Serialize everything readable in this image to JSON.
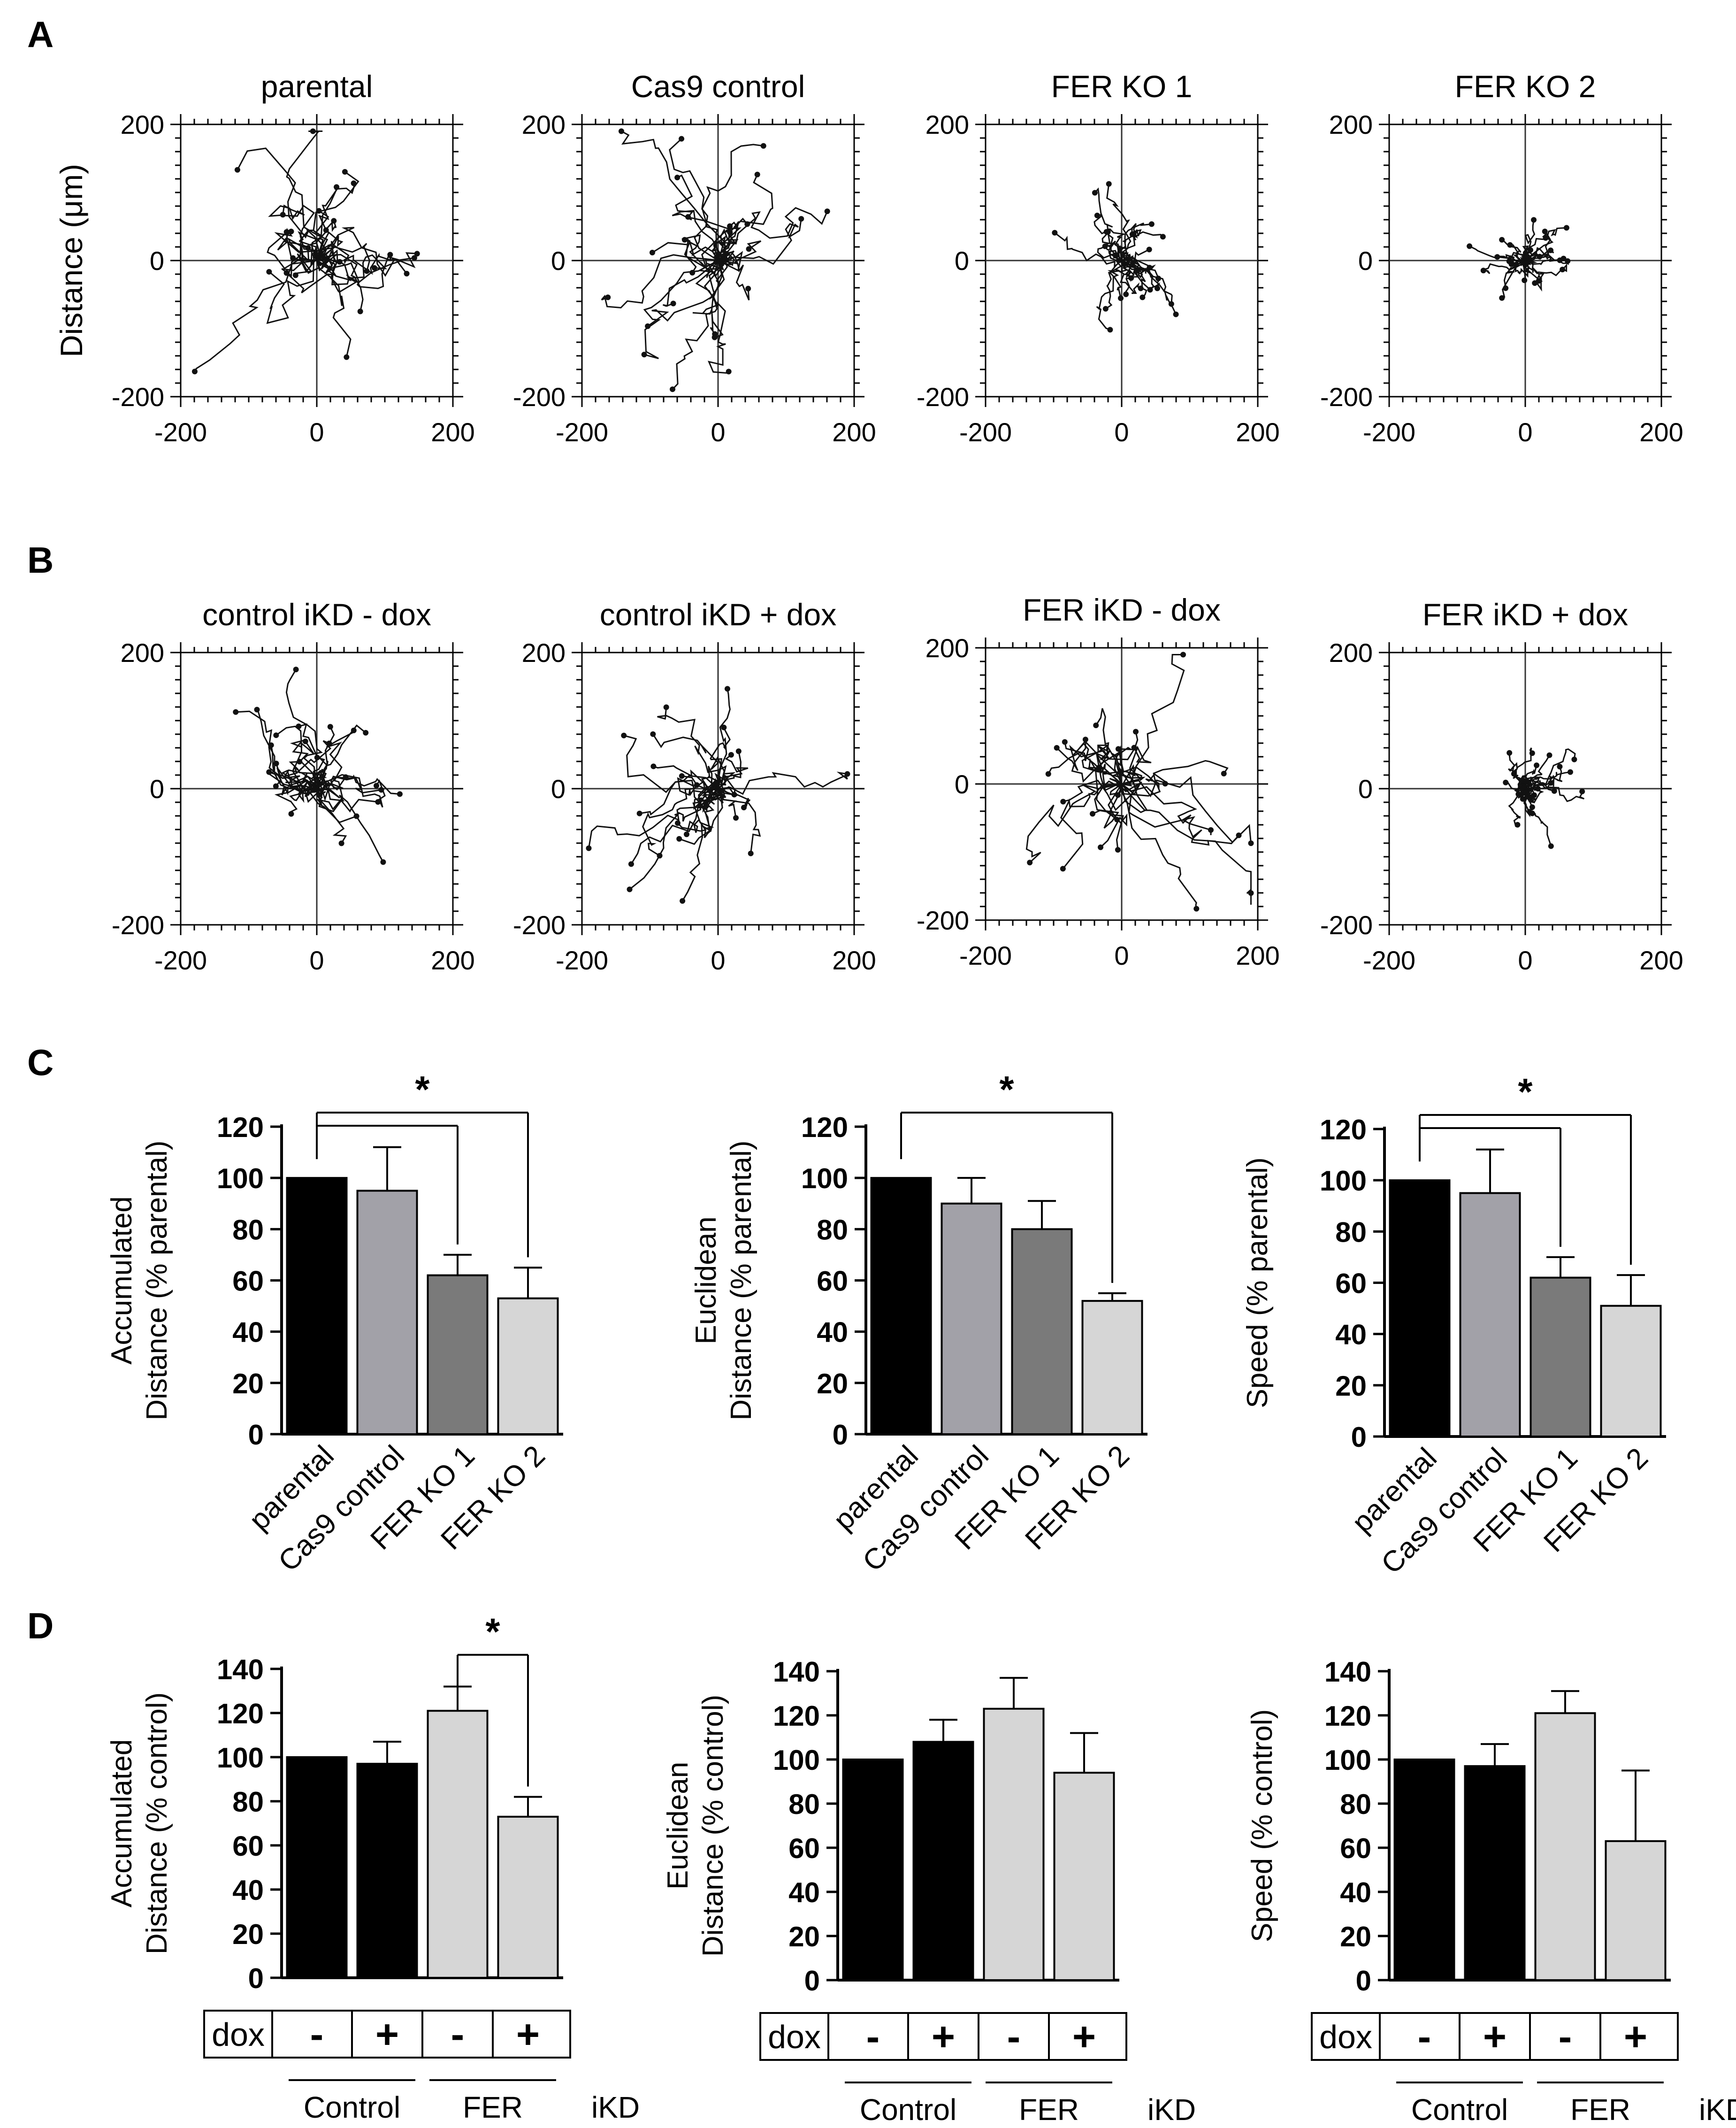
{
  "chart_data": [
    {
      "panel": "A",
      "type": "scatter",
      "title": "parental",
      "ylabel": "Distance (μm)",
      "xlim": [
        -200,
        200
      ],
      "ylim": [
        -200,
        200
      ],
      "x_ticks": [
        "-200",
        "0",
        "200"
      ],
      "y_ticks": [
        "200",
        "0",
        "-200"
      ],
      "spread": 80
    },
    {
      "panel": "A",
      "type": "scatter",
      "title": "Cas9 control",
      "ylabel": "",
      "xlim": [
        -200,
        200
      ],
      "ylim": [
        -200,
        200
      ],
      "x_ticks": [
        "-200",
        "0",
        "200"
      ],
      "y_ticks": [
        "200",
        "0",
        "-200"
      ],
      "spread": 80
    },
    {
      "panel": "A",
      "type": "scatter",
      "title": "FER KO 1",
      "ylabel": "",
      "xlim": [
        -200,
        200
      ],
      "ylim": [
        -200,
        200
      ],
      "x_ticks": [
        "-200",
        "0",
        "200"
      ],
      "y_ticks": [
        "200",
        "0",
        "-200"
      ],
      "spread": 40
    },
    {
      "panel": "A",
      "type": "scatter",
      "title": "FER KO 2",
      "ylabel": "",
      "xlim": [
        -200,
        200
      ],
      "ylim": [
        -200,
        200
      ],
      "x_ticks": [
        "-200",
        "0",
        "200"
      ],
      "y_ticks": [
        "200",
        "0",
        "-200"
      ],
      "spread": 35
    },
    {
      "panel": "B",
      "type": "scatter",
      "title": "control iKD - dox",
      "ylabel": "",
      "xlim": [
        -200,
        200
      ],
      "ylim": [
        -200,
        200
      ],
      "x_ticks": [
        "-200",
        "0",
        "200"
      ],
      "y_ticks": [
        "200",
        "0",
        "-200"
      ],
      "spread": 70
    },
    {
      "panel": "B",
      "type": "scatter",
      "title": "control iKD + dox",
      "ylabel": "",
      "xlim": [
        -200,
        200
      ],
      "ylim": [
        -200,
        200
      ],
      "x_ticks": [
        "-200",
        "0",
        "200"
      ],
      "y_ticks": [
        "200",
        "0",
        "-200"
      ],
      "spread": 70
    },
    {
      "panel": "B",
      "type": "scatter",
      "title": "FER iKD - dox",
      "ylabel": "",
      "xlim": [
        -200,
        200
      ],
      "ylim": [
        -200,
        200
      ],
      "x_ticks": [
        "-200",
        "0",
        "200"
      ],
      "y_ticks": [
        "200",
        "0",
        "-200"
      ],
      "spread": 85
    },
    {
      "panel": "B",
      "type": "scatter",
      "title": "FER iKD + dox",
      "ylabel": "",
      "xlim": [
        -200,
        200
      ],
      "ylim": [
        -200,
        200
      ],
      "x_ticks": [
        "-200",
        "0",
        "200"
      ],
      "y_ticks": [
        "200",
        "0",
        "-200"
      ],
      "spread": 30
    },
    {
      "panel": "C",
      "type": "bar",
      "ylabel": [
        "Accumulated",
        "Distance (% parental)"
      ],
      "categories": [
        "parental",
        "Cas9 control",
        "FER KO 1",
        "FER KO 2"
      ],
      "values": [
        100,
        95,
        62,
        53
      ],
      "errors": [
        0,
        17,
        8,
        12
      ],
      "colors": [
        "#000000",
        "#a2a1a8",
        "#7a7a7a",
        "#d6d6d6"
      ],
      "ylim": [
        0,
        120
      ],
      "y_ticks": [
        "0",
        "20",
        "40",
        "60",
        "80",
        "100",
        "120"
      ],
      "significance": {
        "from": 0,
        "to": [
          2,
          3
        ],
        "label": "*"
      }
    },
    {
      "panel": "C",
      "type": "bar",
      "ylabel": [
        "Euclidean",
        "Distance (% parental)"
      ],
      "categories": [
        "parental",
        "Cas9 control",
        "FER KO 1",
        "FER KO 2"
      ],
      "values": [
        100,
        90,
        80,
        52
      ],
      "errors": [
        0,
        10,
        11,
        3
      ],
      "colors": [
        "#000000",
        "#a2a1a8",
        "#7a7a7a",
        "#d6d6d6"
      ],
      "ylim": [
        0,
        120
      ],
      "y_ticks": [
        "0",
        "20",
        "40",
        "60",
        "80",
        "100",
        "120"
      ],
      "significance": {
        "from": 0,
        "to": [
          3
        ],
        "label": "*"
      }
    },
    {
      "panel": "C",
      "type": "bar",
      "ylabel": [
        "Speed (% parental)"
      ],
      "categories": [
        "parental",
        "Cas9 control",
        "FER KO 1",
        "FER KO 2"
      ],
      "values": [
        100,
        95,
        62,
        51
      ],
      "errors": [
        0,
        17,
        8,
        12
      ],
      "colors": [
        "#000000",
        "#a2a1a8",
        "#7a7a7a",
        "#d6d6d6"
      ],
      "ylim": [
        0,
        120
      ],
      "y_ticks": [
        "0",
        "20",
        "40",
        "60",
        "80",
        "100",
        "120"
      ],
      "significance": {
        "from": 0,
        "to": [
          2,
          3
        ],
        "label": "*"
      }
    },
    {
      "panel": "D",
      "type": "bar",
      "ylabel": [
        "Accumulated",
        "Distance (% control)"
      ],
      "categories": [
        "Control -",
        "Control +",
        "FER -",
        "FER +"
      ],
      "values": [
        100,
        97,
        121,
        73
      ],
      "errors": [
        0,
        10,
        11,
        9
      ],
      "colors": [
        "#000000",
        "#000000",
        "#d6d6d6",
        "#d6d6d6"
      ],
      "ylim": [
        0,
        140
      ],
      "y_ticks": [
        "0",
        "20",
        "40",
        "60",
        "80",
        "100",
        "120",
        "140"
      ],
      "significance": {
        "from": 2,
        "to": [
          3
        ],
        "label": "*"
      },
      "dox_label": "dox",
      "dox_values": [
        "-",
        "+",
        "-",
        "+"
      ],
      "groups": [
        "Control",
        "FER"
      ],
      "group_suffix": "iKD"
    },
    {
      "panel": "D",
      "type": "bar",
      "ylabel": [
        "Euclidean",
        "Distance (% control)"
      ],
      "categories": [
        "Control -",
        "Control +",
        "FER -",
        "FER +"
      ],
      "values": [
        100,
        108,
        123,
        94
      ],
      "errors": [
        0,
        10,
        14,
        18
      ],
      "colors": [
        "#000000",
        "#000000",
        "#d6d6d6",
        "#d6d6d6"
      ],
      "ylim": [
        0,
        140
      ],
      "y_ticks": [
        "0",
        "20",
        "40",
        "60",
        "80",
        "100",
        "120",
        "140"
      ],
      "significance": null,
      "dox_label": "dox",
      "dox_values": [
        "-",
        "+",
        "-",
        "+"
      ],
      "groups": [
        "Control",
        "FER"
      ],
      "group_suffix": "iKD"
    },
    {
      "panel": "D",
      "type": "bar",
      "ylabel": [
        "Speed (% control)"
      ],
      "categories": [
        "Control -",
        "Control +",
        "FER -",
        "FER +"
      ],
      "values": [
        100,
        97,
        121,
        63
      ],
      "errors": [
        0,
        10,
        10,
        32
      ],
      "colors": [
        "#000000",
        "#000000",
        "#d6d6d6",
        "#d6d6d6"
      ],
      "ylim": [
        0,
        140
      ],
      "y_ticks": [
        "0",
        "20",
        "40",
        "60",
        "80",
        "100",
        "120",
        "140"
      ],
      "significance": null,
      "dox_label": "dox",
      "dox_values": [
        "-",
        "+",
        "-",
        "+"
      ],
      "groups": [
        "Control",
        "FER"
      ],
      "group_suffix": "iKD"
    }
  ],
  "panel_labels": [
    "A",
    "B",
    "C",
    "D"
  ]
}
